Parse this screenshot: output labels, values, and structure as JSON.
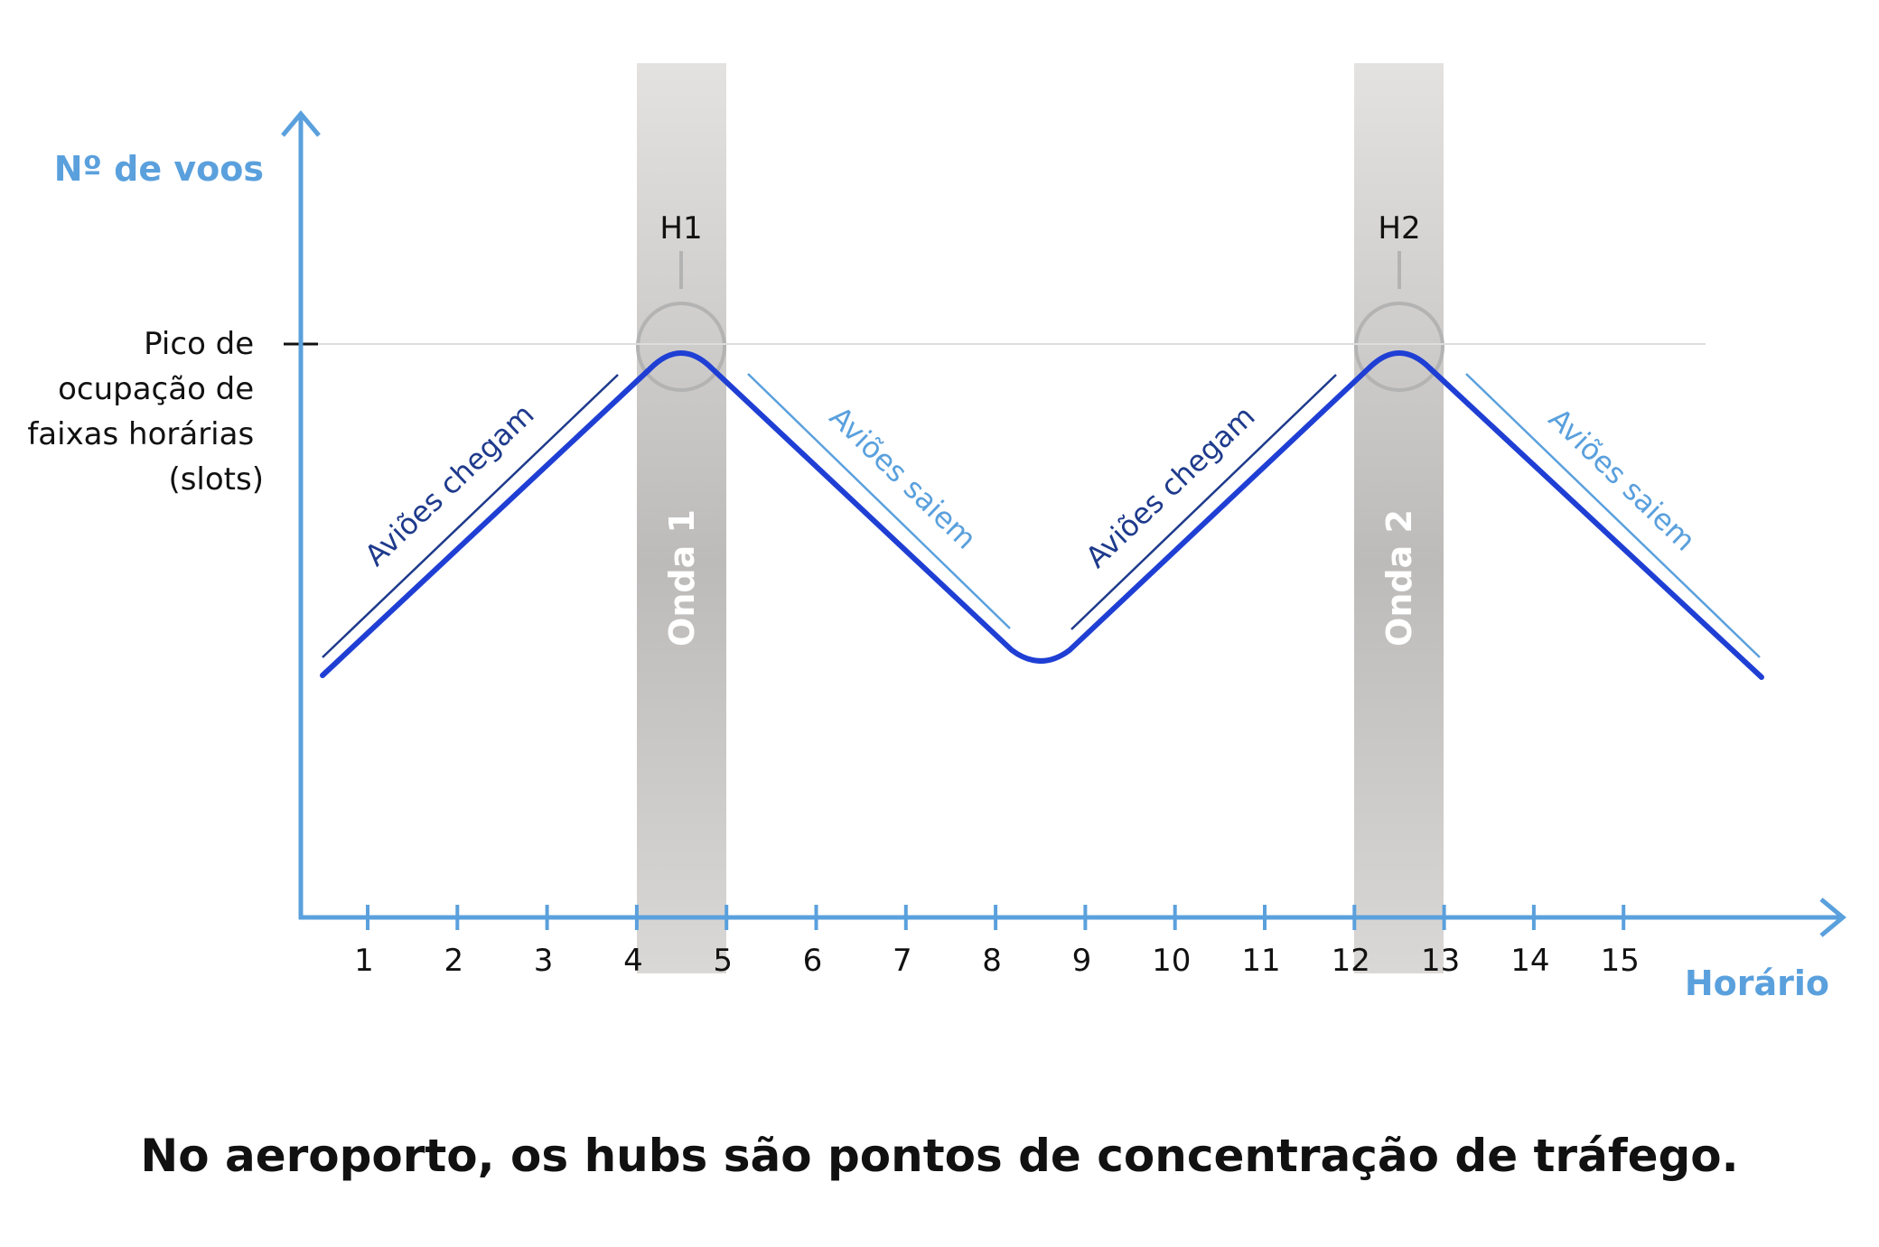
{
  "caption": "No aeroporto, os hubs são pontos de concentração de tráfego.",
  "colors": {
    "axis": "#5aa0dd",
    "main_line": "#1f3fd4",
    "arrive_label": "#1e3a8c",
    "depart_label": "#5aa0dd",
    "band": "#cfcdcb",
    "peak_marker": "#b3b3b3",
    "text": "#111111"
  },
  "axes": {
    "y_label": "Nº de voos",
    "x_label": "Horário",
    "x_ticks": [
      "1",
      "2",
      "3",
      "4",
      "5",
      "6",
      "7",
      "8",
      "9",
      "10",
      "11",
      "12",
      "13",
      "14",
      "15"
    ],
    "peak_label_lines": [
      "Pico de",
      "ocupação de",
      "faixas horárias",
      "(slots)"
    ]
  },
  "waves": [
    {
      "band_label": "Onda 1",
      "hub_label": "H1",
      "from": 4,
      "to": 5
    },
    {
      "band_label": "Onda 2",
      "hub_label": "H2",
      "from": 12,
      "to": 13
    }
  ],
  "segment_labels": {
    "arrive": "Aviões chegam",
    "depart": "Aviões saiem"
  }
}
